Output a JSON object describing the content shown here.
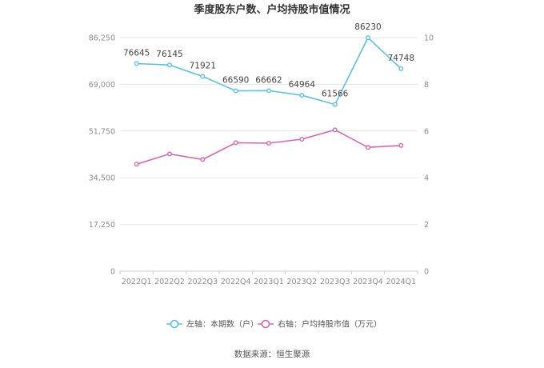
{
  "title": "季度股东户数、户均持股市值情况",
  "source": "数据来源：恒生聚源",
  "chart_data": {
    "type": "line",
    "title": "季度股东户数、户均持股市值情况",
    "categories": [
      "2022Q1",
      "2022Q2",
      "2022Q3",
      "2022Q4",
      "2023Q1",
      "2023Q2",
      "2023Q3",
      "2023Q4",
      "2024Q1"
    ],
    "y_left": {
      "min": 0,
      "max": 86250,
      "ticks": [
        "0",
        "17,250",
        "34,500",
        "51,750",
        "69,000",
        "86,250"
      ],
      "tick_values": [
        0,
        17250,
        34500,
        51750,
        69000,
        86250
      ]
    },
    "y_right": {
      "min": 0,
      "max": 10,
      "ticks": [
        "0",
        "2",
        "4",
        "6",
        "8",
        "10"
      ],
      "tick_values": [
        0,
        2,
        4,
        6,
        8,
        10
      ]
    },
    "grid": true,
    "legend_position": "bottom",
    "series": [
      {
        "name": "左轴：本期数（户）",
        "axis": "left",
        "color": "#5bc0eb",
        "values": [
          76645,
          76145,
          71921,
          66590,
          66662,
          64964,
          61566,
          86230,
          74748
        ],
        "labels": [
          "76645",
          "76145",
          "71921",
          "66590",
          "66662",
          "64964",
          "61566",
          "86230",
          "74748"
        ]
      },
      {
        "name": "右轴：户均持股市值（万元）",
        "axis": "right",
        "color": "#d966b3",
        "values": [
          4.58,
          5.02,
          4.78,
          5.5,
          5.48,
          5.65,
          6.05,
          5.3,
          5.38
        ]
      }
    ]
  }
}
